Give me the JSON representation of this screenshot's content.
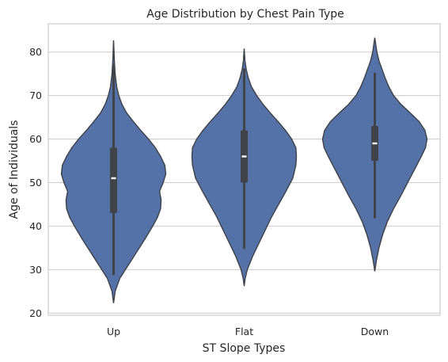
{
  "chart_data": {
    "type": "violin",
    "title": "Age Distribution by Chest Pain Type",
    "xlabel": "ST Slope Types",
    "ylabel": "Age of Individuals",
    "ylim": [
      19.5,
      86.5
    ],
    "yticks": [
      20,
      30,
      40,
      50,
      60,
      70,
      80
    ],
    "grid": "horizontal",
    "colors": {
      "fill": "#5572a8",
      "edge": "#3d4147",
      "box": "#404348"
    },
    "categories": [
      "Up",
      "Flat",
      "Down"
    ],
    "violins": [
      {
        "category": "Up",
        "min": 22.3,
        "max": 82.7,
        "whisker_low": 29,
        "whisker_high": 77,
        "q1": 43,
        "median": 51,
        "q3": 58,
        "profile": [
          [
            22.3,
            0
          ],
          [
            25,
            0.03
          ],
          [
            28,
            0.12
          ],
          [
            31,
            0.28
          ],
          [
            34,
            0.44
          ],
          [
            37,
            0.6
          ],
          [
            40,
            0.75
          ],
          [
            42,
            0.84
          ],
          [
            44,
            0.9
          ],
          [
            46,
            0.91
          ],
          [
            48,
            0.88
          ],
          [
            50,
            0.95
          ],
          [
            52,
            1.0
          ],
          [
            54,
            0.98
          ],
          [
            56,
            0.9
          ],
          [
            58,
            0.8
          ],
          [
            60,
            0.67
          ],
          [
            62,
            0.52
          ],
          [
            64,
            0.38
          ],
          [
            66,
            0.25
          ],
          [
            68,
            0.16
          ],
          [
            70,
            0.1
          ],
          [
            72,
            0.06
          ],
          [
            75,
            0.03
          ],
          [
            78,
            0.015
          ],
          [
            82.7,
            0
          ]
        ]
      },
      {
        "category": "Flat",
        "min": 26.2,
        "max": 80.8,
        "whisker_low": 35,
        "whisker_high": 76,
        "q1": 50,
        "median": 56,
        "q3": 62,
        "profile": [
          [
            26.2,
            0
          ],
          [
            28,
            0.02
          ],
          [
            30,
            0.06
          ],
          [
            33,
            0.16
          ],
          [
            36,
            0.28
          ],
          [
            39,
            0.4
          ],
          [
            42,
            0.52
          ],
          [
            45,
            0.66
          ],
          [
            48,
            0.8
          ],
          [
            51,
            0.93
          ],
          [
            54,
            0.99
          ],
          [
            56,
            1.0
          ],
          [
            58,
            0.99
          ],
          [
            60,
            0.91
          ],
          [
            62,
            0.79
          ],
          [
            64,
            0.65
          ],
          [
            66,
            0.5
          ],
          [
            68,
            0.36
          ],
          [
            70,
            0.24
          ],
          [
            72,
            0.14
          ],
          [
            74,
            0.08
          ],
          [
            76,
            0.04
          ],
          [
            78,
            0.015
          ],
          [
            80.8,
            0
          ]
        ]
      },
      {
        "category": "Down",
        "min": 29.6,
        "max": 83.3,
        "whisker_low": 42,
        "whisker_high": 75,
        "q1": 55,
        "median": 59,
        "q3": 63,
        "profile": [
          [
            29.6,
            0
          ],
          [
            32,
            0.03
          ],
          [
            35,
            0.08
          ],
          [
            38,
            0.15
          ],
          [
            41,
            0.24
          ],
          [
            44,
            0.36
          ],
          [
            47,
            0.5
          ],
          [
            50,
            0.63
          ],
          [
            53,
            0.76
          ],
          [
            56,
            0.89
          ],
          [
            58,
            0.97
          ],
          [
            60,
            1.0
          ],
          [
            62,
            0.96
          ],
          [
            64,
            0.85
          ],
          [
            66,
            0.68
          ],
          [
            68,
            0.5
          ],
          [
            70,
            0.36
          ],
          [
            72,
            0.27
          ],
          [
            74,
            0.2
          ],
          [
            76,
            0.14
          ],
          [
            78,
            0.08
          ],
          [
            80,
            0.04
          ],
          [
            83.3,
            0
          ]
        ]
      }
    ]
  }
}
